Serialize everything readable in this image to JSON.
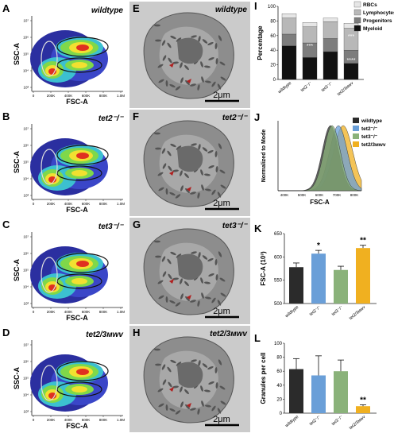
{
  "panels": {
    "A": {
      "letter": "A",
      "title": "wildtype",
      "xlabel": "FSC-A",
      "ylabel": "SSC-A"
    },
    "B": {
      "letter": "B",
      "title": "tet2⁻/⁻",
      "xlabel": "FSC-A",
      "ylabel": "SSC-A"
    },
    "C": {
      "letter": "C",
      "title": "tet3⁻/⁻",
      "xlabel": "FSC-A",
      "ylabel": "SSC-A"
    },
    "D": {
      "letter": "D",
      "title": "tet2/3ᴍᴡᴠ",
      "xlabel": "FSC-A",
      "ylabel": "SSC-A"
    },
    "E": {
      "letter": "E",
      "title": "wildtype",
      "scale": "2μm"
    },
    "F": {
      "letter": "F",
      "title": "tet2⁻/⁻",
      "scale": "2μm"
    },
    "G": {
      "letter": "G",
      "title": "tet3⁻/⁻",
      "scale": "2μm"
    },
    "H": {
      "letter": "H",
      "title": "tet2/3ᴍᴡᴠ",
      "scale": "2μm"
    },
    "I": {
      "letter": "I"
    },
    "J": {
      "letter": "J"
    },
    "K": {
      "letter": "K"
    },
    "L": {
      "letter": "L"
    }
  },
  "flow_ticks": {
    "x": [
      "0",
      "200K",
      "400K",
      "600K",
      "800K",
      "1.0M"
    ],
    "y": [
      "10³",
      "10⁴",
      "10⁵",
      "10⁶",
      "10⁷"
    ]
  },
  "groups": [
    "wildtype",
    "tet2⁻/⁻",
    "tet3⁻/⁻",
    "tet2/3ᴍᴡᴠ"
  ],
  "colors": {
    "wildtype": "#2b2b2b",
    "tet2": "#6a9fd8",
    "tet3": "#8ab27a",
    "tet23": "#f0b020",
    "rbc": "#e6e6e6",
    "lymph": "#b8b8b8",
    "prog": "#7d7d7d",
    "myeloid": "#111111"
  },
  "chart_data": [
    {
      "id": "I",
      "type": "bar",
      "stacked": true,
      "categories": [
        "wildtype",
        "tet2⁻/⁻",
        "tet3⁻/⁻",
        "tet2/3ᴍᴡᴠ"
      ],
      "ylabel": "Percentage",
      "ylim": [
        0,
        100
      ],
      "yticks": [
        "0",
        "20",
        "40",
        "60",
        "80",
        "100"
      ],
      "series": [
        {
          "name": "Myeloid",
          "values": [
            46,
            30,
            38,
            22
          ]
        },
        {
          "name": "Progenitors",
          "values": [
            16,
            20,
            18,
            18
          ]
        },
        {
          "name": "Lymphocytes",
          "values": [
            22,
            22,
            23,
            30
          ]
        },
        {
          "name": "RBCs",
          "values": [
            6,
            6,
            5,
            7
          ]
        }
      ],
      "annotations": [
        "***",
        "***",
        "****"
      ],
      "legend": "top-right"
    },
    {
      "id": "J",
      "type": "area",
      "xlabel": "FSC-A",
      "ylabel": "Normalized to Mode",
      "xticks": [
        "400K",
        "500K",
        "600K",
        "700K",
        "800K"
      ],
      "series": [
        {
          "name": "wildtype"
        },
        {
          "name": "tet2⁻/⁻"
        },
        {
          "name": "tet3⁻/⁻"
        },
        {
          "name": "tet2/3ᴍᴡᴠ"
        }
      ],
      "legend": "top-right"
    },
    {
      "id": "K",
      "type": "bar",
      "categories": [
        "wildtype",
        "tet2⁻/⁻",
        "tet3⁻/⁻",
        "tet2/3ᴍᴡᴠ"
      ],
      "values": [
        578,
        607,
        572,
        619
      ],
      "errors": [
        9,
        7,
        8,
        6
      ],
      "ylabel": "FSC-A (10³)",
      "ylim": [
        500,
        650
      ],
      "yticks": [
        "500",
        "550",
        "600",
        "650"
      ],
      "annotations": [
        "",
        "*",
        "",
        "**"
      ]
    },
    {
      "id": "L",
      "type": "bar",
      "categories": [
        "wildtype",
        "tet2⁻/⁻",
        "tet3⁻/⁻",
        "tet2/3ᴍᴡᴠ"
      ],
      "values": [
        63,
        54,
        60,
        10
      ],
      "errors": [
        15,
        28,
        16,
        2
      ],
      "ylabel": "Granules per cell",
      "ylim": [
        0,
        100
      ],
      "yticks": [
        "0",
        "20",
        "40",
        "60",
        "80",
        "100"
      ],
      "annotations": [
        "",
        "",
        "",
        "**"
      ]
    }
  ]
}
